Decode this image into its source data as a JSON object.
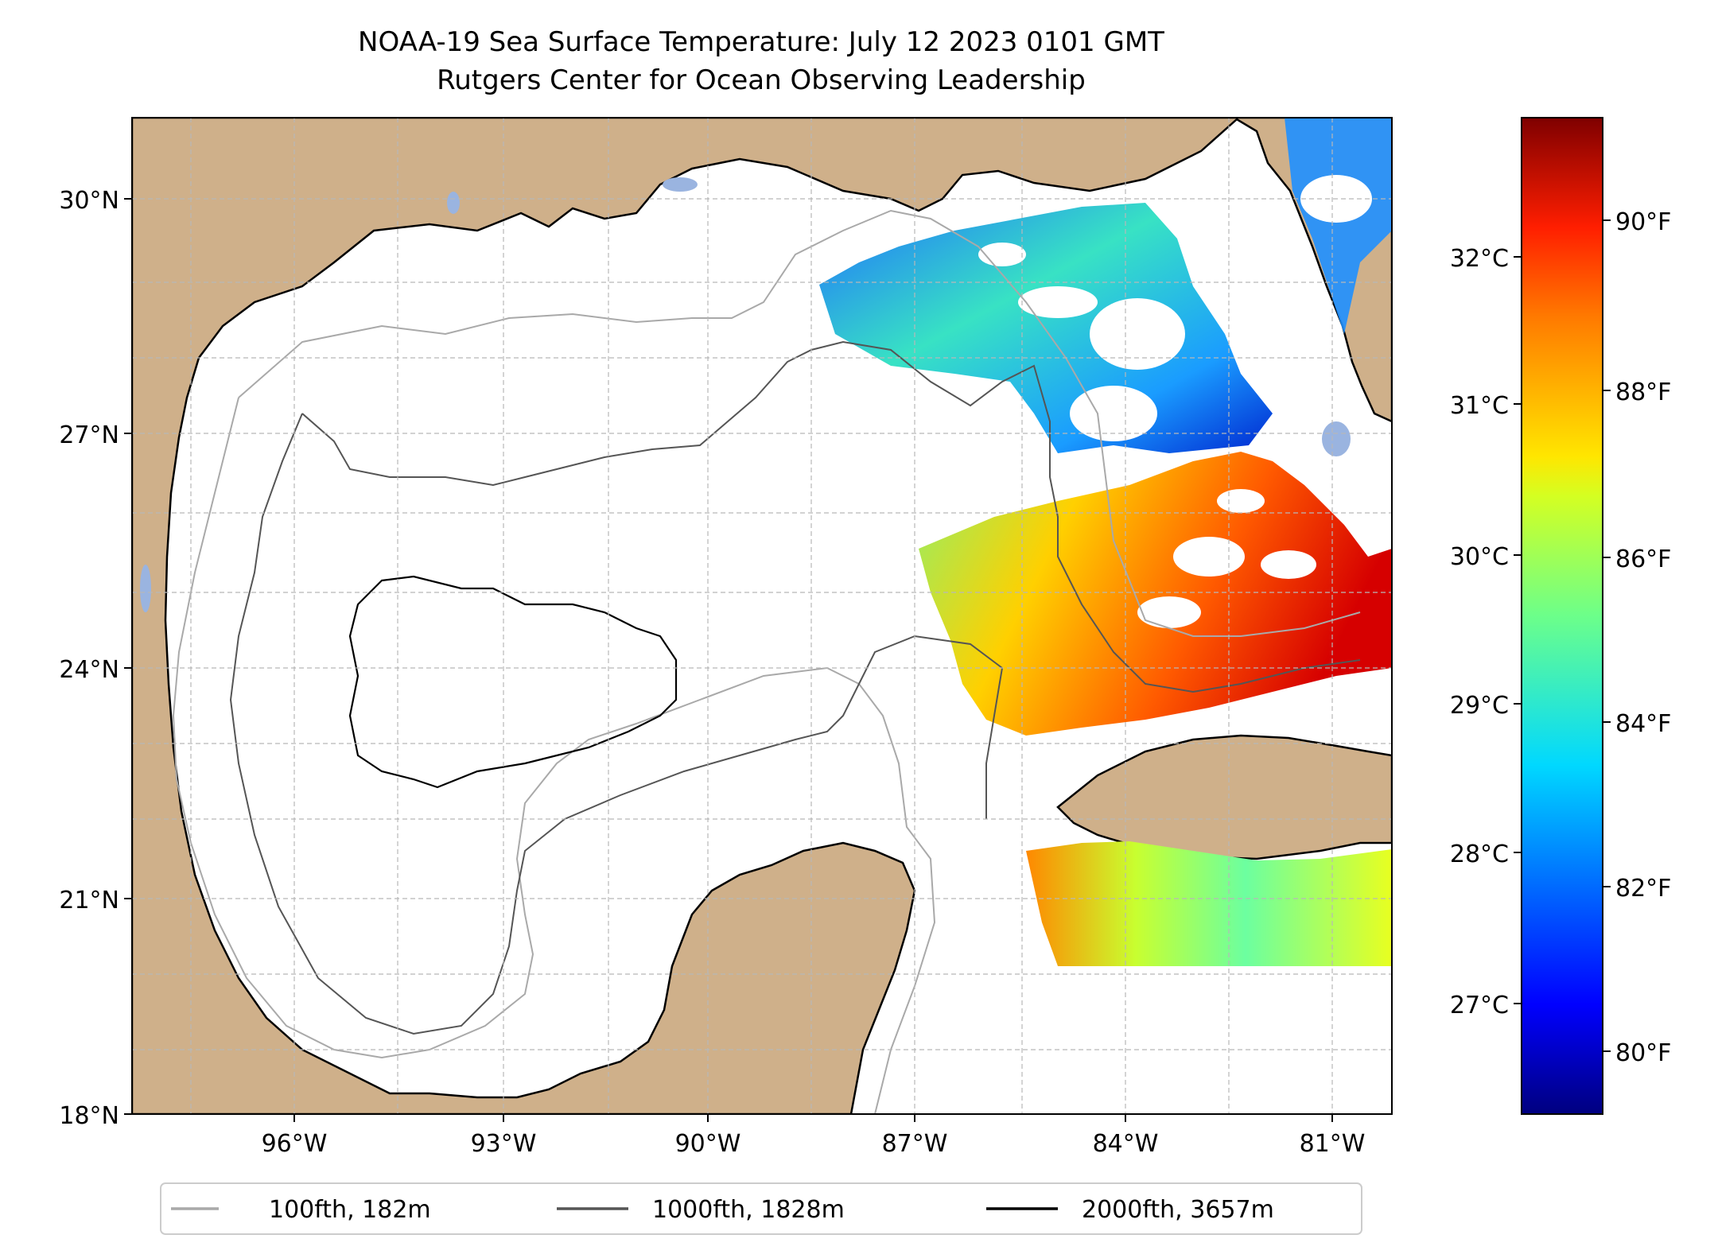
{
  "title": {
    "line1": "NOAA-19 Sea Surface Temperature: July 12 2023 0101 GMT",
    "line2": "Rutgers Center for Ocean Observing Leadership"
  },
  "map": {
    "lat_ticks": [
      "30°N",
      "27°N",
      "24°N",
      "21°N",
      "18°N"
    ],
    "lon_ticks": [
      "96°W",
      "93°W",
      "90°W",
      "87°W",
      "84°W",
      "81°W"
    ],
    "lon_range": [
      -98.0,
      -80.1
    ],
    "lat_range": [
      18.0,
      31.1
    ],
    "gridlines": true,
    "colors": {
      "land": "#cfb08a",
      "ocean": "#ffffff",
      "lakes": "#9ab4e0",
      "grid": "#b8b8b8"
    }
  },
  "colorbar": {
    "celsius_ticks": [
      "32°C",
      "31°C",
      "30°C",
      "29°C",
      "28°C",
      "27°C"
    ],
    "fahrenheit_ticks": [
      "90°F",
      "88°F",
      "86°F",
      "84°F",
      "82°F",
      "80°F"
    ],
    "colormap": "jet",
    "range_celsius": [
      26.3,
      32.9
    ]
  },
  "legend": {
    "items": [
      {
        "label": "100fth, 182m",
        "color": "#a9a9a9"
      },
      {
        "label": "1000fth, 1828m",
        "color": "#555555"
      },
      {
        "label": "2000fth, 3657m",
        "color": "#000000"
      }
    ]
  }
}
